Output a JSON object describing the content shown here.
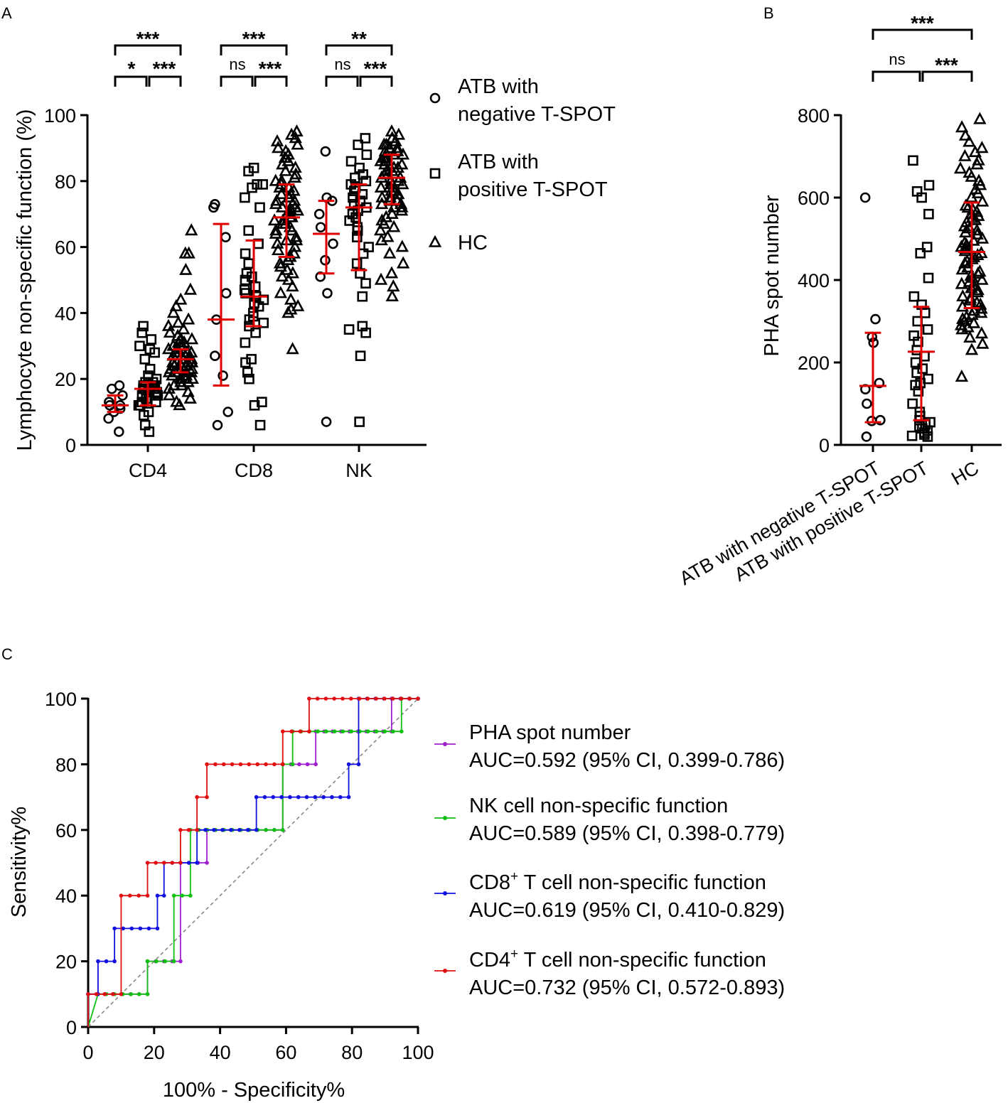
{
  "panels": {
    "a": "A",
    "b": "B",
    "c": "C"
  },
  "chart_data": [
    {
      "type": "scatter",
      "title": "",
      "ylabel": "Lymphocyte non-specific function (%)",
      "ylim": [
        0,
        100
      ],
      "yticks": [
        "0",
        "20",
        "40",
        "60",
        "80",
        "100"
      ],
      "categories": [
        "CD4",
        "CD8",
        "NK"
      ],
      "legend": [
        {
          "symbol": "circle",
          "line1": "ATB with",
          "line2": "negative T-SPOT"
        },
        {
          "symbol": "square",
          "line1": "ATB with",
          "line2": "positive T-SPOT"
        },
        {
          "symbol": "triangle",
          "line1": "HC",
          "line2": ""
        }
      ],
      "series": [
        {
          "name": "CD4 ATB with negative T-SPOT",
          "group": 0,
          "sub": 0,
          "symbol": "circle",
          "median": 12,
          "q1": 10,
          "q3": 15,
          "values": [
            4,
            8,
            10,
            11,
            12,
            12,
            13,
            15,
            17,
            18
          ]
        },
        {
          "name": "CD4 ATB with positive T-SPOT",
          "group": 0,
          "sub": 1,
          "symbol": "square",
          "median": 17,
          "q1": 12,
          "q3": 19,
          "values": [
            4,
            6,
            9,
            10,
            12,
            12,
            13,
            13,
            14,
            15,
            15,
            16,
            16,
            16,
            17,
            17,
            17,
            17,
            18,
            18,
            18,
            19,
            19,
            20,
            21,
            23,
            26,
            28,
            29,
            30,
            32,
            34,
            36
          ]
        },
        {
          "name": "CD4 HC",
          "group": 0,
          "sub": 2,
          "symbol": "triangle",
          "median": 26,
          "q1": 22,
          "q3": 29,
          "values": [
            12,
            13,
            14,
            15,
            16,
            17,
            18,
            18,
            19,
            19,
            20,
            20,
            20,
            21,
            21,
            21,
            22,
            22,
            22,
            22,
            23,
            23,
            23,
            23,
            24,
            24,
            24,
            24,
            25,
            25,
            25,
            25,
            25,
            26,
            26,
            26,
            26,
            26,
            27,
            27,
            27,
            27,
            28,
            28,
            28,
            28,
            29,
            29,
            29,
            30,
            30,
            30,
            31,
            31,
            32,
            32,
            33,
            34,
            35,
            36,
            37,
            38,
            40,
            42,
            44,
            47,
            53,
            58,
            58,
            65
          ]
        },
        {
          "name": "CD8 ATB with negative T-SPOT",
          "group": 1,
          "sub": 0,
          "symbol": "circle",
          "median": 38,
          "q1": 18,
          "q3": 67,
          "values": [
            6,
            10,
            21,
            27,
            38,
            46,
            63,
            72,
            73
          ]
        },
        {
          "name": "CD8 ATB with positive T-SPOT",
          "group": 1,
          "sub": 1,
          "symbol": "square",
          "median": 45,
          "q1": 36,
          "q3": 62,
          "values": [
            6,
            12,
            13,
            20,
            22,
            25,
            26,
            31,
            34,
            36,
            37,
            38,
            39,
            40,
            42,
            43,
            44,
            45,
            46,
            47,
            48,
            50,
            51,
            52,
            55,
            58,
            61,
            65,
            72,
            75,
            78,
            79,
            79,
            83,
            84
          ]
        },
        {
          "name": "CD8 HC",
          "group": 1,
          "sub": 2,
          "symbol": "triangle",
          "median": 69,
          "q1": 57,
          "q3": 79,
          "values": [
            29,
            40,
            41,
            42,
            44,
            46,
            48,
            50,
            51,
            52,
            53,
            54,
            55,
            56,
            57,
            57,
            58,
            59,
            60,
            61,
            62,
            62,
            63,
            64,
            65,
            65,
            66,
            66,
            67,
            67,
            68,
            68,
            69,
            69,
            70,
            70,
            71,
            71,
            72,
            72,
            73,
            73,
            74,
            74,
            75,
            75,
            76,
            76,
            77,
            78,
            78,
            79,
            80,
            80,
            81,
            82,
            83,
            84,
            85,
            86,
            87,
            88,
            89,
            90,
            91,
            92,
            93,
            94,
            95
          ]
        },
        {
          "name": "NK ATB with negative T-SPOT",
          "group": 2,
          "sub": 0,
          "symbol": "circle",
          "median": 64,
          "q1": 52,
          "q3": 74,
          "values": [
            7,
            46,
            51,
            56,
            61,
            66,
            70,
            74,
            75,
            89
          ]
        },
        {
          "name": "NK ATB with positive T-SPOT",
          "group": 2,
          "sub": 1,
          "symbol": "square",
          "median": 72,
          "q1": 53,
          "q3": 79,
          "values": [
            7,
            27,
            34,
            35,
            36,
            45,
            49,
            52,
            55,
            58,
            60,
            63,
            65,
            66,
            68,
            69,
            70,
            71,
            72,
            73,
            74,
            75,
            76,
            77,
            78,
            79,
            80,
            81,
            82,
            84,
            86,
            88,
            91,
            93
          ]
        },
        {
          "name": "NK HC",
          "group": 2,
          "sub": 2,
          "symbol": "triangle",
          "median": 81,
          "q1": 73,
          "q3": 88,
          "values": [
            45,
            48,
            50,
            52,
            55,
            58,
            60,
            62,
            63,
            65,
            66,
            67,
            68,
            69,
            70,
            71,
            72,
            72,
            73,
            73,
            74,
            74,
            75,
            75,
            76,
            76,
            77,
            77,
            78,
            78,
            79,
            79,
            80,
            80,
            81,
            81,
            82,
            82,
            83,
            83,
            84,
            84,
            85,
            85,
            86,
            86,
            87,
            87,
            88,
            88,
            89,
            89,
            90,
            90,
            91,
            91,
            92,
            93,
            94,
            95
          ]
        }
      ],
      "significance": [
        {
          "group": 0,
          "top": "***",
          "left": "*",
          "right": "***"
        },
        {
          "group": 1,
          "top": "***",
          "left": "ns",
          "right": "***"
        },
        {
          "group": 2,
          "top": "**",
          "left": "ns",
          "right": "***"
        }
      ]
    },
    {
      "type": "scatter",
      "title": "",
      "ylabel": "PHA spot number",
      "ylim": [
        0,
        800
      ],
      "yticks": [
        "0",
        "200",
        "400",
        "600",
        "800"
      ],
      "categories": [
        "ATB with negative T-SPOT",
        "ATB with positive T-SPOT",
        "HC"
      ],
      "series": [
        {
          "name": "ATB with negative T-SPOT",
          "symbol": "circle",
          "median": 143,
          "q1": 55,
          "q3": 272,
          "values": [
            20,
            58,
            60,
            100,
            135,
            150,
            248,
            262,
            305,
            600
          ]
        },
        {
          "name": "ATB with positive T-SPOT",
          "symbol": "square",
          "median": 226,
          "q1": 60,
          "q3": 335,
          "values": [
            20,
            22,
            25,
            30,
            35,
            40,
            45,
            50,
            55,
            60,
            70,
            80,
            100,
            130,
            145,
            150,
            160,
            175,
            185,
            200,
            215,
            230,
            250,
            265,
            280,
            300,
            320,
            340,
            360,
            405,
            465,
            480,
            560,
            600,
            615,
            630,
            690
          ]
        },
        {
          "name": "HC",
          "symbol": "triangle",
          "median": 468,
          "q1": 332,
          "q3": 588,
          "values": [
            165,
            230,
            245,
            260,
            270,
            280,
            285,
            290,
            295,
            300,
            305,
            310,
            315,
            320,
            325,
            330,
            335,
            340,
            345,
            350,
            355,
            360,
            370,
            375,
            380,
            385,
            390,
            395,
            400,
            405,
            410,
            415,
            420,
            425,
            430,
            440,
            445,
            450,
            455,
            460,
            465,
            470,
            475,
            480,
            485,
            490,
            495,
            500,
            510,
            515,
            520,
            525,
            530,
            540,
            545,
            550,
            555,
            560,
            565,
            570,
            575,
            580,
            590,
            600,
            610,
            620,
            630,
            640,
            650,
            660,
            670,
            680,
            690,
            700,
            710,
            720,
            735,
            750,
            770,
            790
          ]
        }
      ],
      "significance": {
        "top": "***",
        "left": "ns",
        "right": "***"
      }
    },
    {
      "type": "line",
      "title": "",
      "xlabel": "100% - Specificity%",
      "ylabel": "Sensitivity%",
      "xlim": [
        0,
        100
      ],
      "ylim": [
        0,
        100
      ],
      "xticks": [
        "0",
        "20",
        "40",
        "60",
        "80",
        "100"
      ],
      "yticks": [
        "0",
        "20",
        "40",
        "60",
        "80",
        "100"
      ],
      "diagonal": true,
      "series": [
        {
          "name": "PHA spot number",
          "sup": "",
          "auc": "AUC=0.592 (95% CI, 0.399-0.786)",
          "color": "#a020d0",
          "x": [
            0,
            0,
            18,
            18,
            28,
            28,
            36,
            36,
            59,
            59,
            69,
            69,
            92,
            92,
            100
          ],
          "y": [
            0,
            10,
            10,
            20,
            20,
            50,
            50,
            60,
            60,
            80,
            80,
            90,
            90,
            100,
            100
          ]
        },
        {
          "name": "NK cell non-specific function",
          "sup": "",
          "auc": "AUC=0.589 (95% CI, 0.398-0.779)",
          "color": "#10c010",
          "x": [
            0,
            3,
            18,
            18,
            26,
            26,
            31,
            31,
            59,
            59,
            62,
            62,
            95,
            95,
            100
          ],
          "y": [
            0,
            10,
            10,
            20,
            20,
            40,
            40,
            60,
            60,
            80,
            80,
            90,
            90,
            100,
            100
          ]
        },
        {
          "name": " T cell non-specific function",
          "sup": "+",
          "prefix": "CD8",
          "auc": "AUC=0.619 (95% CI, 0.410-0.829)",
          "color": "#1010e0",
          "x": [
            0,
            0,
            3,
            3,
            8,
            8,
            21,
            21,
            23,
            23,
            33,
            33,
            51,
            51,
            79,
            79,
            82,
            82,
            100
          ],
          "y": [
            0,
            10,
            10,
            20,
            20,
            30,
            30,
            40,
            40,
            50,
            50,
            60,
            60,
            70,
            70,
            80,
            80,
            100,
            100
          ]
        },
        {
          "name": " T cell non-specific function",
          "sup": "+",
          "prefix": "CD4",
          "auc": "AUC=0.732 (95% CI, 0.572-0.893)",
          "color": "#e01010",
          "x": [
            0,
            0,
            10,
            10,
            18,
            18,
            28,
            28,
            33,
            33,
            36,
            36,
            59,
            59,
            67,
            67,
            100
          ],
          "y": [
            0,
            10,
            10,
            40,
            40,
            50,
            50,
            60,
            60,
            70,
            70,
            80,
            80,
            90,
            90,
            100,
            100
          ]
        }
      ]
    }
  ],
  "colors": {
    "median_bar": "#e00000",
    "axis": "#000000",
    "diagonal": "#888888"
  }
}
